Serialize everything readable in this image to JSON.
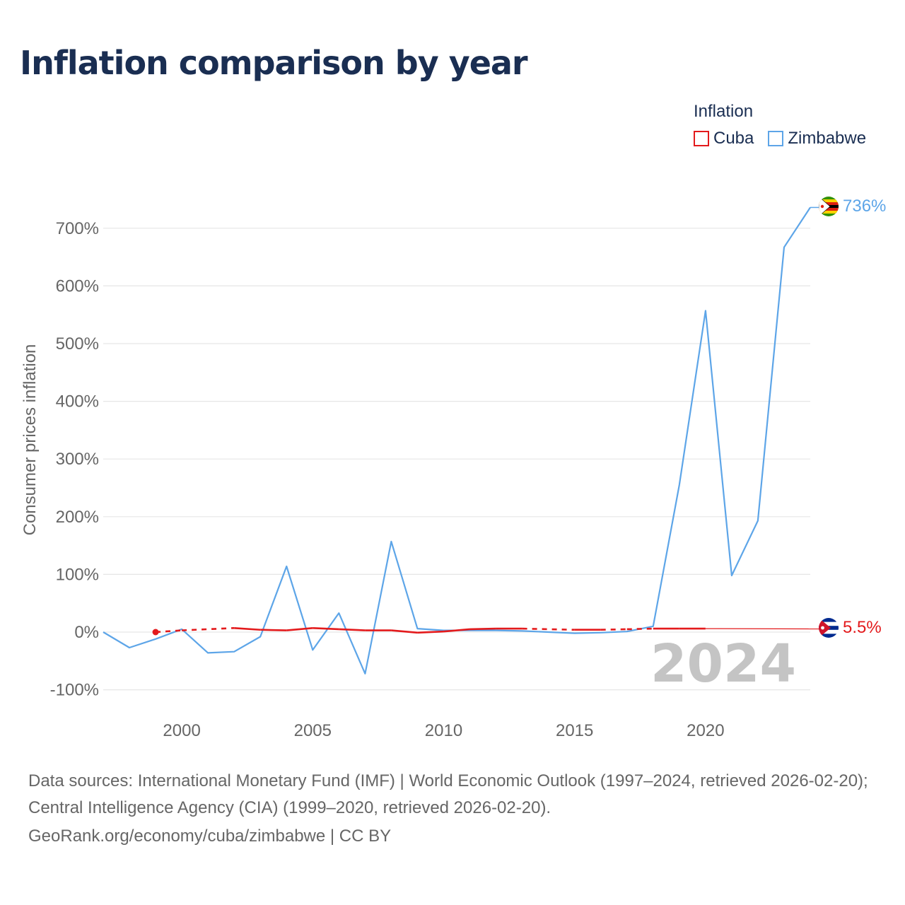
{
  "title": "Inflation comparison by year",
  "legend": {
    "title": "Inflation",
    "items": [
      {
        "name": "Cuba",
        "color": "#e31a1c"
      },
      {
        "name": "Zimbabwe",
        "color": "#5da5e8"
      }
    ]
  },
  "chart_data": {
    "type": "line",
    "title": "Inflation comparison by year",
    "xlabel": "",
    "ylabel": "Consumer prices inflation",
    "xlim": [
      1997,
      2024
    ],
    "ylim": [
      -100,
      800
    ],
    "x_ticks": [
      2000,
      2005,
      2010,
      2015,
      2020
    ],
    "x_tick_labels": [
      "2000",
      "2005",
      "2010",
      "2015",
      "2020"
    ],
    "y_ticks": [
      -100,
      0,
      100,
      200,
      300,
      400,
      500,
      600,
      700
    ],
    "y_tick_labels": [
      "-100%",
      "0%",
      "100%",
      "200%",
      "300%",
      "400%",
      "500%",
      "600%",
      "700%"
    ],
    "year_watermark": "2024",
    "series": [
      {
        "name": "Zimbabwe",
        "color": "#5da5e8",
        "end_label": "736%",
        "points": [
          [
            1997,
            0
          ],
          [
            1998,
            -27
          ],
          [
            1999,
            -12
          ],
          [
            2000,
            5
          ],
          [
            2001,
            -36
          ],
          [
            2002,
            -34
          ],
          [
            2003,
            -8
          ],
          [
            2004,
            114
          ],
          [
            2005,
            -31
          ],
          [
            2006,
            33
          ],
          [
            2007,
            -72
          ],
          [
            2008,
            157
          ],
          [
            2009,
            6
          ],
          [
            2010,
            3
          ],
          [
            2011,
            3
          ],
          [
            2012,
            3
          ],
          [
            2013,
            2
          ],
          [
            2014,
            0
          ],
          [
            2015,
            -2
          ],
          [
            2016,
            -1
          ],
          [
            2017,
            1
          ],
          [
            2018,
            10
          ],
          [
            2019,
            255
          ],
          [
            2020,
            557
          ],
          [
            2021,
            98
          ],
          [
            2022,
            193
          ],
          [
            2023,
            667
          ],
          [
            2024,
            736
          ]
        ]
      },
      {
        "name": "Cuba",
        "color": "#e31a1c",
        "end_label": "5.5%",
        "points": [
          [
            1999,
            0
          ],
          [
            2000,
            3
          ],
          [
            2002,
            7
          ],
          [
            2003,
            4
          ],
          [
            2004,
            3
          ],
          [
            2005,
            7
          ],
          [
            2006,
            5
          ],
          [
            2007,
            3
          ],
          [
            2008,
            3
          ],
          [
            2009,
            -1
          ],
          [
            2010,
            1
          ],
          [
            2011,
            5
          ],
          [
            2012,
            6
          ],
          [
            2013,
            6
          ],
          [
            2015,
            4
          ],
          [
            2016,
            4
          ],
          [
            2017,
            5
          ],
          [
            2018,
            6
          ],
          [
            2019,
            6
          ],
          [
            2020,
            6
          ],
          [
            2024,
            5.5
          ]
        ],
        "dashed_segments": [
          [
            1999,
            2002
          ],
          [
            2013,
            2015
          ],
          [
            2016,
            2018
          ]
        ],
        "solid_until": 2020,
        "extension_to": 2024
      }
    ]
  },
  "source": {
    "text": "Data sources: International Monetary Fund (IMF) | World Economic Outlook (1997–2024, retrieved 2026-02-20); Central Intelligence Agency (CIA) (1999–2020, retrieved 2026-02-20).",
    "footer": "GeoRank.org/economy/cuba/zimbabwe | CC BY"
  }
}
